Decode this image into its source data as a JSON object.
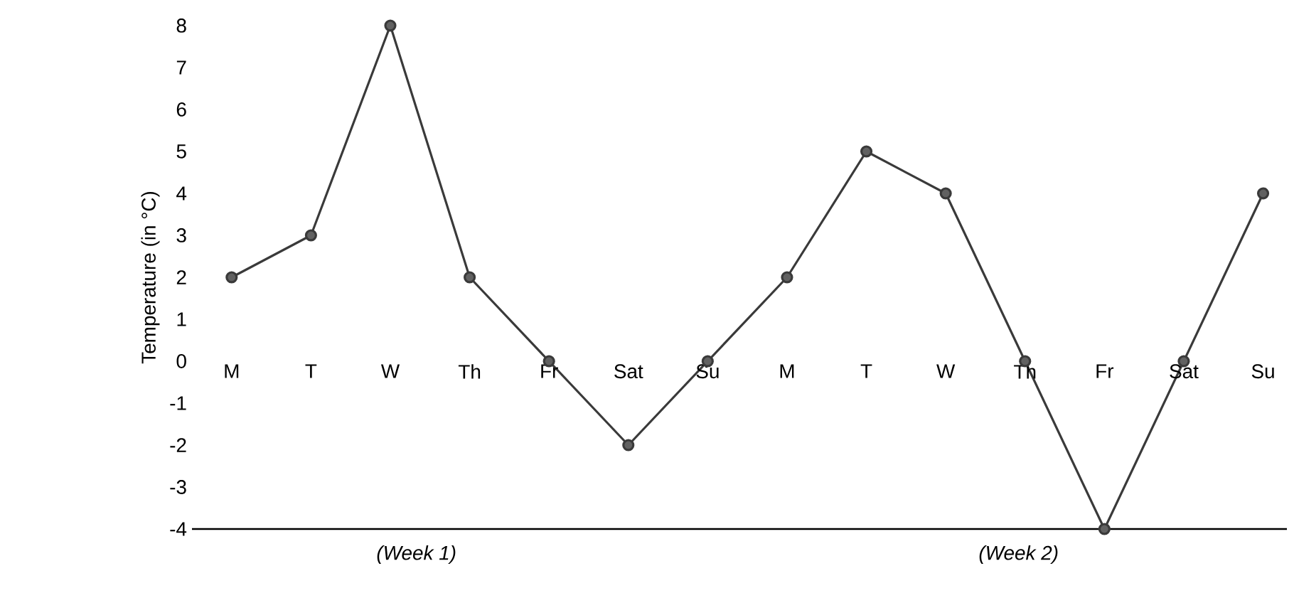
{
  "chart_data": {
    "type": "line",
    "ylabel": "Temperature (in °C)",
    "categories": [
      "M",
      "T",
      "W",
      "Th",
      "Fr",
      "Sat",
      "Su",
      "M",
      "T",
      "W",
      "Th",
      "Fr",
      "Sat",
      "Su"
    ],
    "values": [
      2,
      3,
      8,
      2,
      0,
      -2,
      0,
      2,
      5,
      4,
      0,
      -4,
      0,
      4
    ],
    "color": "#3a3a3a",
    "marker": "circle",
    "line_style": "solid",
    "ylim": [
      -4,
      8
    ],
    "yticks": [
      -4,
      -3,
      -2,
      -1,
      0,
      1,
      2,
      3,
      4,
      5,
      6,
      7,
      8
    ],
    "annotations": [
      "(Week 1)",
      "(Week 2)"
    ]
  }
}
